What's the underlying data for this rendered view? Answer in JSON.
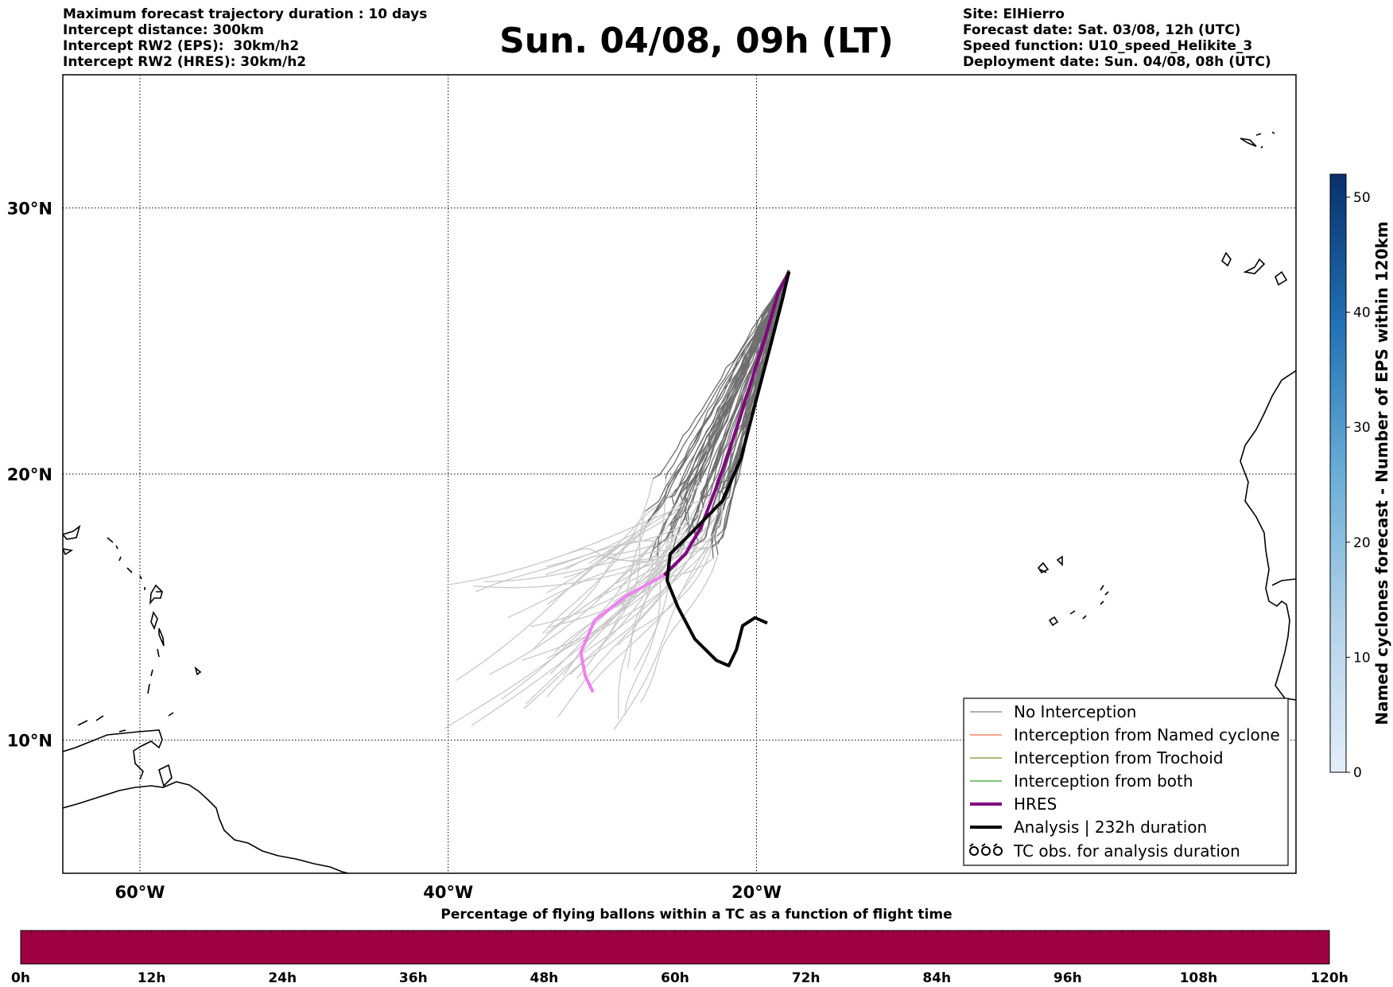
{
  "header": {
    "left_lines": [
      "Maximum forecast trajectory duration : 10 days",
      "Intercept distance: 300km",
      "Intercept RW2 (EPS):  30km/h2",
      "Intercept RW2 (HRES): 30km/h2"
    ],
    "title": "Sun. 04/08, 09h (LT)",
    "right_lines": [
      "Site: ElHierro",
      "Forecast date: Sat. 03/08, 12h (UTC)",
      "Speed function: U10_speed_Helikite_3",
      "Deployment date: Sun. 04/08, 08h (UTC)"
    ]
  },
  "map": {
    "lon_range": [
      -65,
      15
    ],
    "lat_range": [
      5,
      35
    ],
    "lat_ticks": [
      {
        "value": 30,
        "label": "30°N"
      },
      {
        "value": 20,
        "label": "20°N"
      },
      {
        "value": 10,
        "label": "10°N"
      }
    ],
    "lon_ticks": [
      {
        "value": -60,
        "label": "60°W"
      },
      {
        "value": -40,
        "label": "40°W"
      },
      {
        "value": -20,
        "label": "20°W"
      }
    ],
    "gridlines": true
  },
  "colorbar_right": {
    "label": "Named cyclones forecast - Number of EPS within 120km",
    "range": [
      0,
      52
    ],
    "ticks": [
      "0",
      "10",
      "20",
      "30",
      "40",
      "50"
    ],
    "colors": [
      "#e3eef9",
      "#08306b"
    ]
  },
  "legend": {
    "items": [
      {
        "label": "No Interception",
        "color": "#808080",
        "style": "thin"
      },
      {
        "label": "Interception from Named cyclone",
        "color": "#f46d43",
        "style": "thin"
      },
      {
        "label": "Interception from Trochoid",
        "color": "#8c8c2a",
        "style": "thin"
      },
      {
        "label": "Interception from both",
        "color": "#2ca02c",
        "style": "thin"
      },
      {
        "label": "HRES",
        "color": "#800080",
        "style": "thick"
      },
      {
        "label": "Analysis | 232h duration",
        "color": "#000000",
        "style": "thick"
      },
      {
        "label": "TC obs. for analysis duration",
        "color": "#000000",
        "style": "symbol"
      }
    ]
  },
  "timebar": {
    "title": "Percentage of flying ballons within a TC as a function of flight time",
    "ticks": [
      "0h",
      "12h",
      "24h",
      "36h",
      "48h",
      "60h",
      "72h",
      "84h",
      "96h",
      "108h",
      "120h"
    ],
    "color": "#9e0142"
  },
  "tracks": {
    "origin": [
      -17.9,
      27.6
    ],
    "hres": [
      [
        -17.9,
        27.6
      ],
      [
        -18.6,
        26.8
      ],
      [
        -19.4,
        25.2
      ],
      [
        -20.6,
        23.0
      ],
      [
        -21.8,
        20.8
      ],
      [
        -22.6,
        19.5
      ],
      [
        -23.6,
        18.0
      ],
      [
        -24.6,
        17.0
      ],
      [
        -26.0,
        16.2
      ],
      [
        -28.5,
        15.4
      ],
      [
        -30.5,
        14.5
      ],
      [
        -31.4,
        13.3
      ],
      [
        -31.1,
        12.4
      ],
      [
        -30.6,
        11.8
      ]
    ],
    "analysis": [
      [
        -17.9,
        27.6
      ],
      [
        -18.3,
        26.6
      ],
      [
        -19.1,
        24.8
      ],
      [
        -20.1,
        22.6
      ],
      [
        -21.0,
        20.6
      ],
      [
        -22.2,
        19.0
      ],
      [
        -24.2,
        17.8
      ],
      [
        -25.6,
        17.0
      ],
      [
        -25.8,
        16.0
      ],
      [
        -25.1,
        15.0
      ],
      [
        -24.0,
        13.8
      ],
      [
        -22.6,
        13.0
      ],
      [
        -21.8,
        12.8
      ],
      [
        -21.3,
        13.4
      ],
      [
        -20.9,
        14.3
      ],
      [
        -20.1,
        14.6
      ],
      [
        -19.3,
        14.4
      ]
    ]
  }
}
